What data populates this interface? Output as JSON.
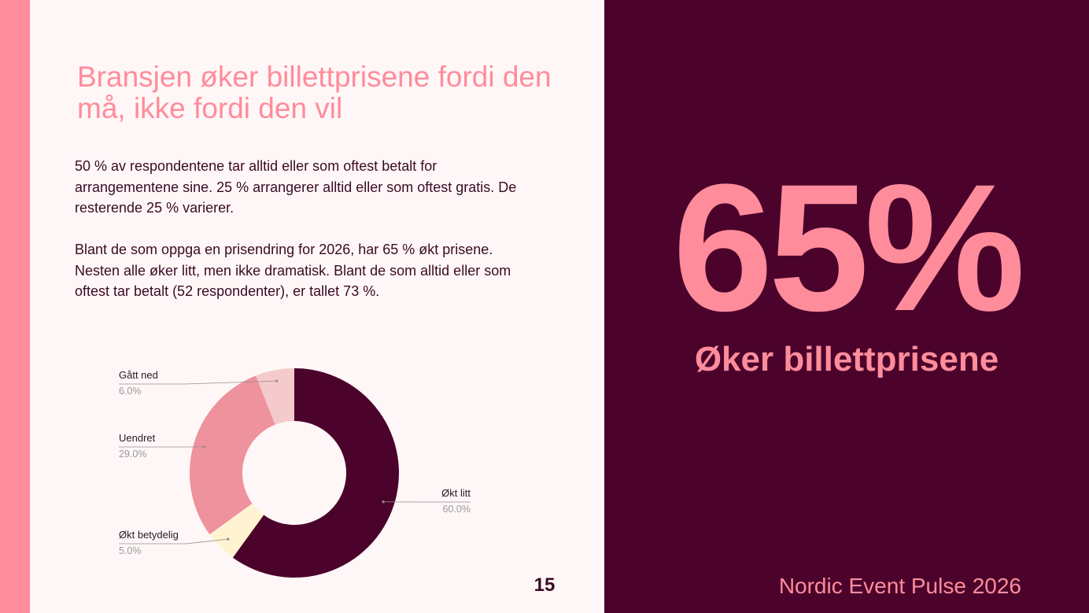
{
  "slide": {
    "title": "Bransjen øker billettprisene fordi den må, ikke fordi den vil",
    "paragraph_1": "50 % av respondentene tar alltid eller som oftest betalt for arrangementene sine. 25 % arrangerer alltid eller som oftest gratis. De resterende 25 % varierer.",
    "paragraph_2": "Blant de som oppga en prisendring for 2026, har 65 % økt prisene. Nesten alle øker litt, men ikke dramatisk. Blant de som alltid eller som oftest tar betalt (52 respondenter), er tallet 73 %.",
    "page_number": "15"
  },
  "highlight": {
    "value": "65%",
    "label": "Øker billettprisene"
  },
  "footer": {
    "brand": "Nordic Event Pulse 2026"
  },
  "colors": {
    "accent_pink": "#FF8C9B",
    "dark_plum": "#4B032C",
    "background": "#FFF7F7"
  },
  "chart_data": {
    "type": "pie",
    "donut": true,
    "slices": [
      {
        "label": "Økt litt",
        "value": 60.0,
        "display": "60.0%",
        "color": "#4B032C"
      },
      {
        "label": "Økt betydelig",
        "value": 5.0,
        "display": "5.0%",
        "color": "#FFF3D1"
      },
      {
        "label": "Uendret",
        "value": 29.0,
        "display": "29.0%",
        "color": "#EE929D"
      },
      {
        "label": "Gått ned",
        "value": 6.0,
        "display": "6.0%",
        "color": "#F4CACC"
      }
    ]
  }
}
